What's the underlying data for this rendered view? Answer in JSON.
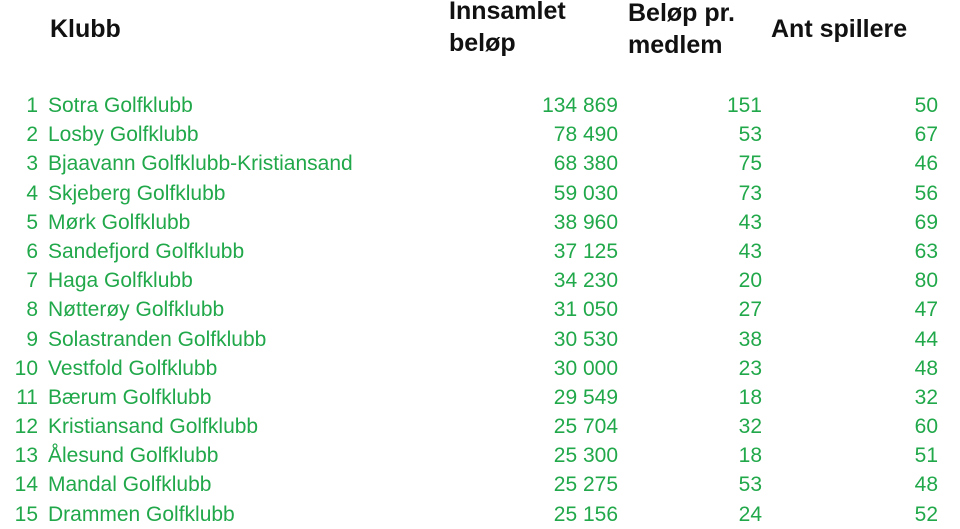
{
  "headers": {
    "club": "Klubb",
    "collected": "Innsamlet\nbeløp",
    "per_member": "Beløp pr.\nmedlem",
    "players": "Ant spillere"
  },
  "colors": {
    "header_text": "#111111",
    "row_text": "#21a84a",
    "background": "#ffffff"
  },
  "rows": [
    {
      "rank": "1",
      "club": "Sotra Golfklubb",
      "collected": "134 869",
      "per_member": "151",
      "players": "50"
    },
    {
      "rank": "2",
      "club": "Losby Golfklubb",
      "collected": "78 490",
      "per_member": "53",
      "players": "67"
    },
    {
      "rank": "3",
      "club": "Bjaavann Golfklubb-Kristiansand",
      "collected": "68 380",
      "per_member": "75",
      "players": "46"
    },
    {
      "rank": "4",
      "club": "Skjeberg Golfklubb",
      "collected": "59 030",
      "per_member": "73",
      "players": "56"
    },
    {
      "rank": "5",
      "club": "Mørk Golfklubb",
      "collected": "38 960",
      "per_member": "43",
      "players": "69"
    },
    {
      "rank": "6",
      "club": "Sandefjord Golfklubb",
      "collected": "37 125",
      "per_member": "43",
      "players": "63"
    },
    {
      "rank": "7",
      "club": "Haga Golfklubb",
      "collected": "34 230",
      "per_member": "20",
      "players": "80"
    },
    {
      "rank": "8",
      "club": "Nøtterøy Golfklubb",
      "collected": "31 050",
      "per_member": "27",
      "players": "47"
    },
    {
      "rank": "9",
      "club": "Solastranden Golfklubb",
      "collected": "30 530",
      "per_member": "38",
      "players": "44"
    },
    {
      "rank": "10",
      "club": "Vestfold Golfklubb",
      "collected": "30 000",
      "per_member": "23",
      "players": "48"
    },
    {
      "rank": "11",
      "club": "Bærum Golfklubb",
      "collected": "29 549",
      "per_member": "18",
      "players": "32"
    },
    {
      "rank": "12",
      "club": "Kristiansand Golfklubb",
      "collected": "25 704",
      "per_member": "32",
      "players": "60"
    },
    {
      "rank": "13",
      "club": "Ålesund Golfklubb",
      "collected": "25 300",
      "per_member": "18",
      "players": "51"
    },
    {
      "rank": "14",
      "club": "Mandal Golfklubb",
      "collected": "25 275",
      "per_member": "53",
      "players": "48"
    },
    {
      "rank": "15",
      "club": "Drammen Golfklubb",
      "collected": "25 156",
      "per_member": "24",
      "players": "52"
    }
  ]
}
